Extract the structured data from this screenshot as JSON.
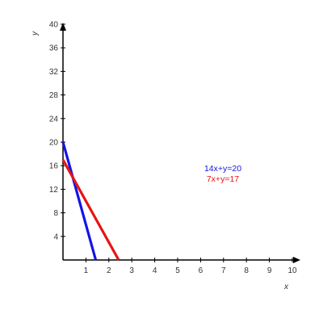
{
  "chart_data": {
    "type": "line",
    "title": "",
    "xlabel": "x",
    "ylabel": "y",
    "xlim": [
      0,
      10
    ],
    "ylim": [
      0,
      40
    ],
    "x_ticks": [
      1,
      2,
      3,
      4,
      5,
      6,
      7,
      8,
      9,
      10
    ],
    "y_ticks": [
      4,
      8,
      12,
      16,
      20,
      24,
      28,
      32,
      36,
      40
    ],
    "grid": false,
    "legend_placement": "center-right",
    "series": [
      {
        "name": "14x+y=20",
        "color": "#1414e6",
        "x": [
          0,
          1.4286
        ],
        "y": [
          20,
          0
        ]
      },
      {
        "name": "7x+y=17",
        "color": "#e61414",
        "x": [
          0,
          2.4286
        ],
        "y": [
          17,
          0
        ]
      }
    ]
  }
}
